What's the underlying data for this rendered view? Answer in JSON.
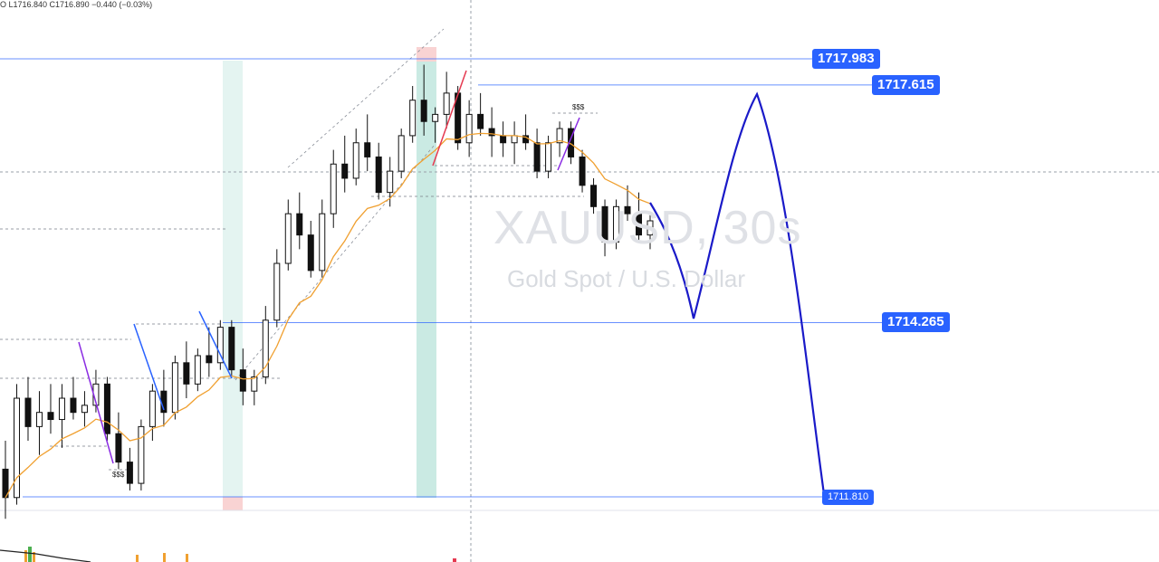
{
  "header": {
    "ohlc_text": "O L1716.840 C1716.890 −0.440 (−0.03%)"
  },
  "watermark": {
    "symbol": "XAUUSD, 30s",
    "description": "Gold Spot / U.S. Dollar"
  },
  "annotations": {
    "liquidity_left": "$$$",
    "liquidity_right": "$$$"
  },
  "price_levels": [
    {
      "label": "1717.983",
      "value": 1717.983
    },
    {
      "label": "1717.615",
      "value": 1717.615
    },
    {
      "label": "1714.265",
      "value": 1714.265
    },
    {
      "label": "1711.810",
      "value": 1711.81
    }
  ],
  "colors": {
    "candle": "#111111",
    "ema": "#f0a030",
    "level_line": "#2962ff",
    "projection": "#1a1ac8",
    "zone_teal": "#b2dfd6",
    "zone_pink": "#f8c8c8",
    "tag_bg": "#2962ff"
  },
  "chart_data": {
    "type": "candlestick",
    "title": "XAUUSD, 30s",
    "subtitle": "Gold Spot / U.S. Dollar",
    "ylim": [
      1711.3,
      1718.4
    ],
    "candles_approx": [
      [
        1712.2,
        1712.6,
        1711.5,
        1711.8
      ],
      [
        1711.8,
        1713.4,
        1711.7,
        1713.2
      ],
      [
        1713.2,
        1713.5,
        1712.6,
        1712.8
      ],
      [
        1712.8,
        1713.3,
        1712.4,
        1713.0
      ],
      [
        1713.0,
        1713.4,
        1712.7,
        1712.9
      ],
      [
        1712.9,
        1713.4,
        1712.5,
        1713.2
      ],
      [
        1713.2,
        1713.5,
        1712.9,
        1713.0
      ],
      [
        1713.0,
        1713.3,
        1712.8,
        1713.1
      ],
      [
        1713.1,
        1713.6,
        1713.0,
        1713.4
      ],
      [
        1713.4,
        1713.5,
        1712.6,
        1712.7
      ],
      [
        1712.7,
        1713.0,
        1712.2,
        1712.3
      ],
      [
        1712.3,
        1712.5,
        1711.9,
        1712.0
      ],
      [
        1712.0,
        1712.9,
        1711.9,
        1712.8
      ],
      [
        1712.8,
        1713.4,
        1712.6,
        1713.3
      ],
      [
        1713.3,
        1713.6,
        1712.8,
        1713.0
      ],
      [
        1713.0,
        1713.8,
        1712.9,
        1713.7
      ],
      [
        1713.7,
        1714.0,
        1713.2,
        1713.4
      ],
      [
        1713.4,
        1713.9,
        1713.3,
        1713.8
      ],
      [
        1713.8,
        1714.2,
        1713.5,
        1713.7
      ],
      [
        1713.7,
        1714.3,
        1713.6,
        1714.2
      ],
      [
        1714.2,
        1714.3,
        1713.5,
        1713.6
      ],
      [
        1713.6,
        1713.9,
        1713.1,
        1713.3
      ],
      [
        1713.3,
        1713.6,
        1713.1,
        1713.5
      ],
      [
        1713.5,
        1714.5,
        1713.4,
        1714.3
      ],
      [
        1714.3,
        1715.3,
        1714.2,
        1715.1
      ],
      [
        1715.1,
        1716.0,
        1715.0,
        1715.8
      ],
      [
        1715.8,
        1716.1,
        1715.3,
        1715.5
      ],
      [
        1715.5,
        1715.7,
        1714.9,
        1715.0
      ],
      [
        1715.0,
        1716.0,
        1714.9,
        1715.8
      ],
      [
        1715.8,
        1716.7,
        1715.6,
        1716.5
      ],
      [
        1716.5,
        1716.9,
        1716.1,
        1716.3
      ],
      [
        1716.3,
        1717.0,
        1716.2,
        1716.8
      ],
      [
        1716.8,
        1717.2,
        1716.4,
        1716.6
      ],
      [
        1716.6,
        1716.8,
        1716.0,
        1716.1
      ],
      [
        1716.1,
        1716.6,
        1715.9,
        1716.4
      ],
      [
        1716.4,
        1717.0,
        1716.3,
        1716.9
      ],
      [
        1716.9,
        1717.6,
        1716.8,
        1717.4
      ],
      [
        1717.4,
        1717.9,
        1716.9,
        1717.1
      ],
      [
        1717.1,
        1717.3,
        1716.8,
        1717.2
      ],
      [
        1717.2,
        1717.8,
        1717.0,
        1717.5
      ],
      [
        1717.5,
        1717.6,
        1716.7,
        1716.8
      ],
      [
        1716.8,
        1717.4,
        1716.6,
        1717.2
      ],
      [
        1717.2,
        1717.5,
        1716.9,
        1717.0
      ],
      [
        1717.0,
        1717.3,
        1716.6,
        1716.9
      ],
      [
        1716.9,
        1717.1,
        1716.6,
        1716.8
      ],
      [
        1716.8,
        1717.1,
        1716.5,
        1716.9
      ],
      [
        1716.9,
        1717.2,
        1716.7,
        1716.8
      ],
      [
        1716.8,
        1717.0,
        1716.3,
        1716.4
      ],
      [
        1716.4,
        1716.9,
        1716.3,
        1716.8
      ],
      [
        1716.8,
        1717.1,
        1716.6,
        1717.0
      ],
      [
        1717.0,
        1717.1,
        1716.5,
        1716.6
      ],
      [
        1716.6,
        1716.7,
        1716.1,
        1716.2
      ],
      [
        1716.2,
        1716.3,
        1715.8,
        1715.9
      ],
      [
        1715.9,
        1716.0,
        1715.2,
        1715.4
      ],
      [
        1715.4,
        1716.0,
        1715.3,
        1715.9
      ],
      [
        1715.9,
        1716.2,
        1715.7,
        1715.8
      ],
      [
        1715.8,
        1716.1,
        1715.4,
        1715.5
      ],
      [
        1715.5,
        1715.8,
        1715.3,
        1715.7
      ]
    ],
    "ema_note": "Orange moving average follows price",
    "projection_path": [
      1715.9,
      1714.3,
      1717.6,
      1711.8
    ],
    "price_levels": [
      1717.983,
      1717.615,
      1714.265,
      1711.81
    ],
    "grid": false
  }
}
